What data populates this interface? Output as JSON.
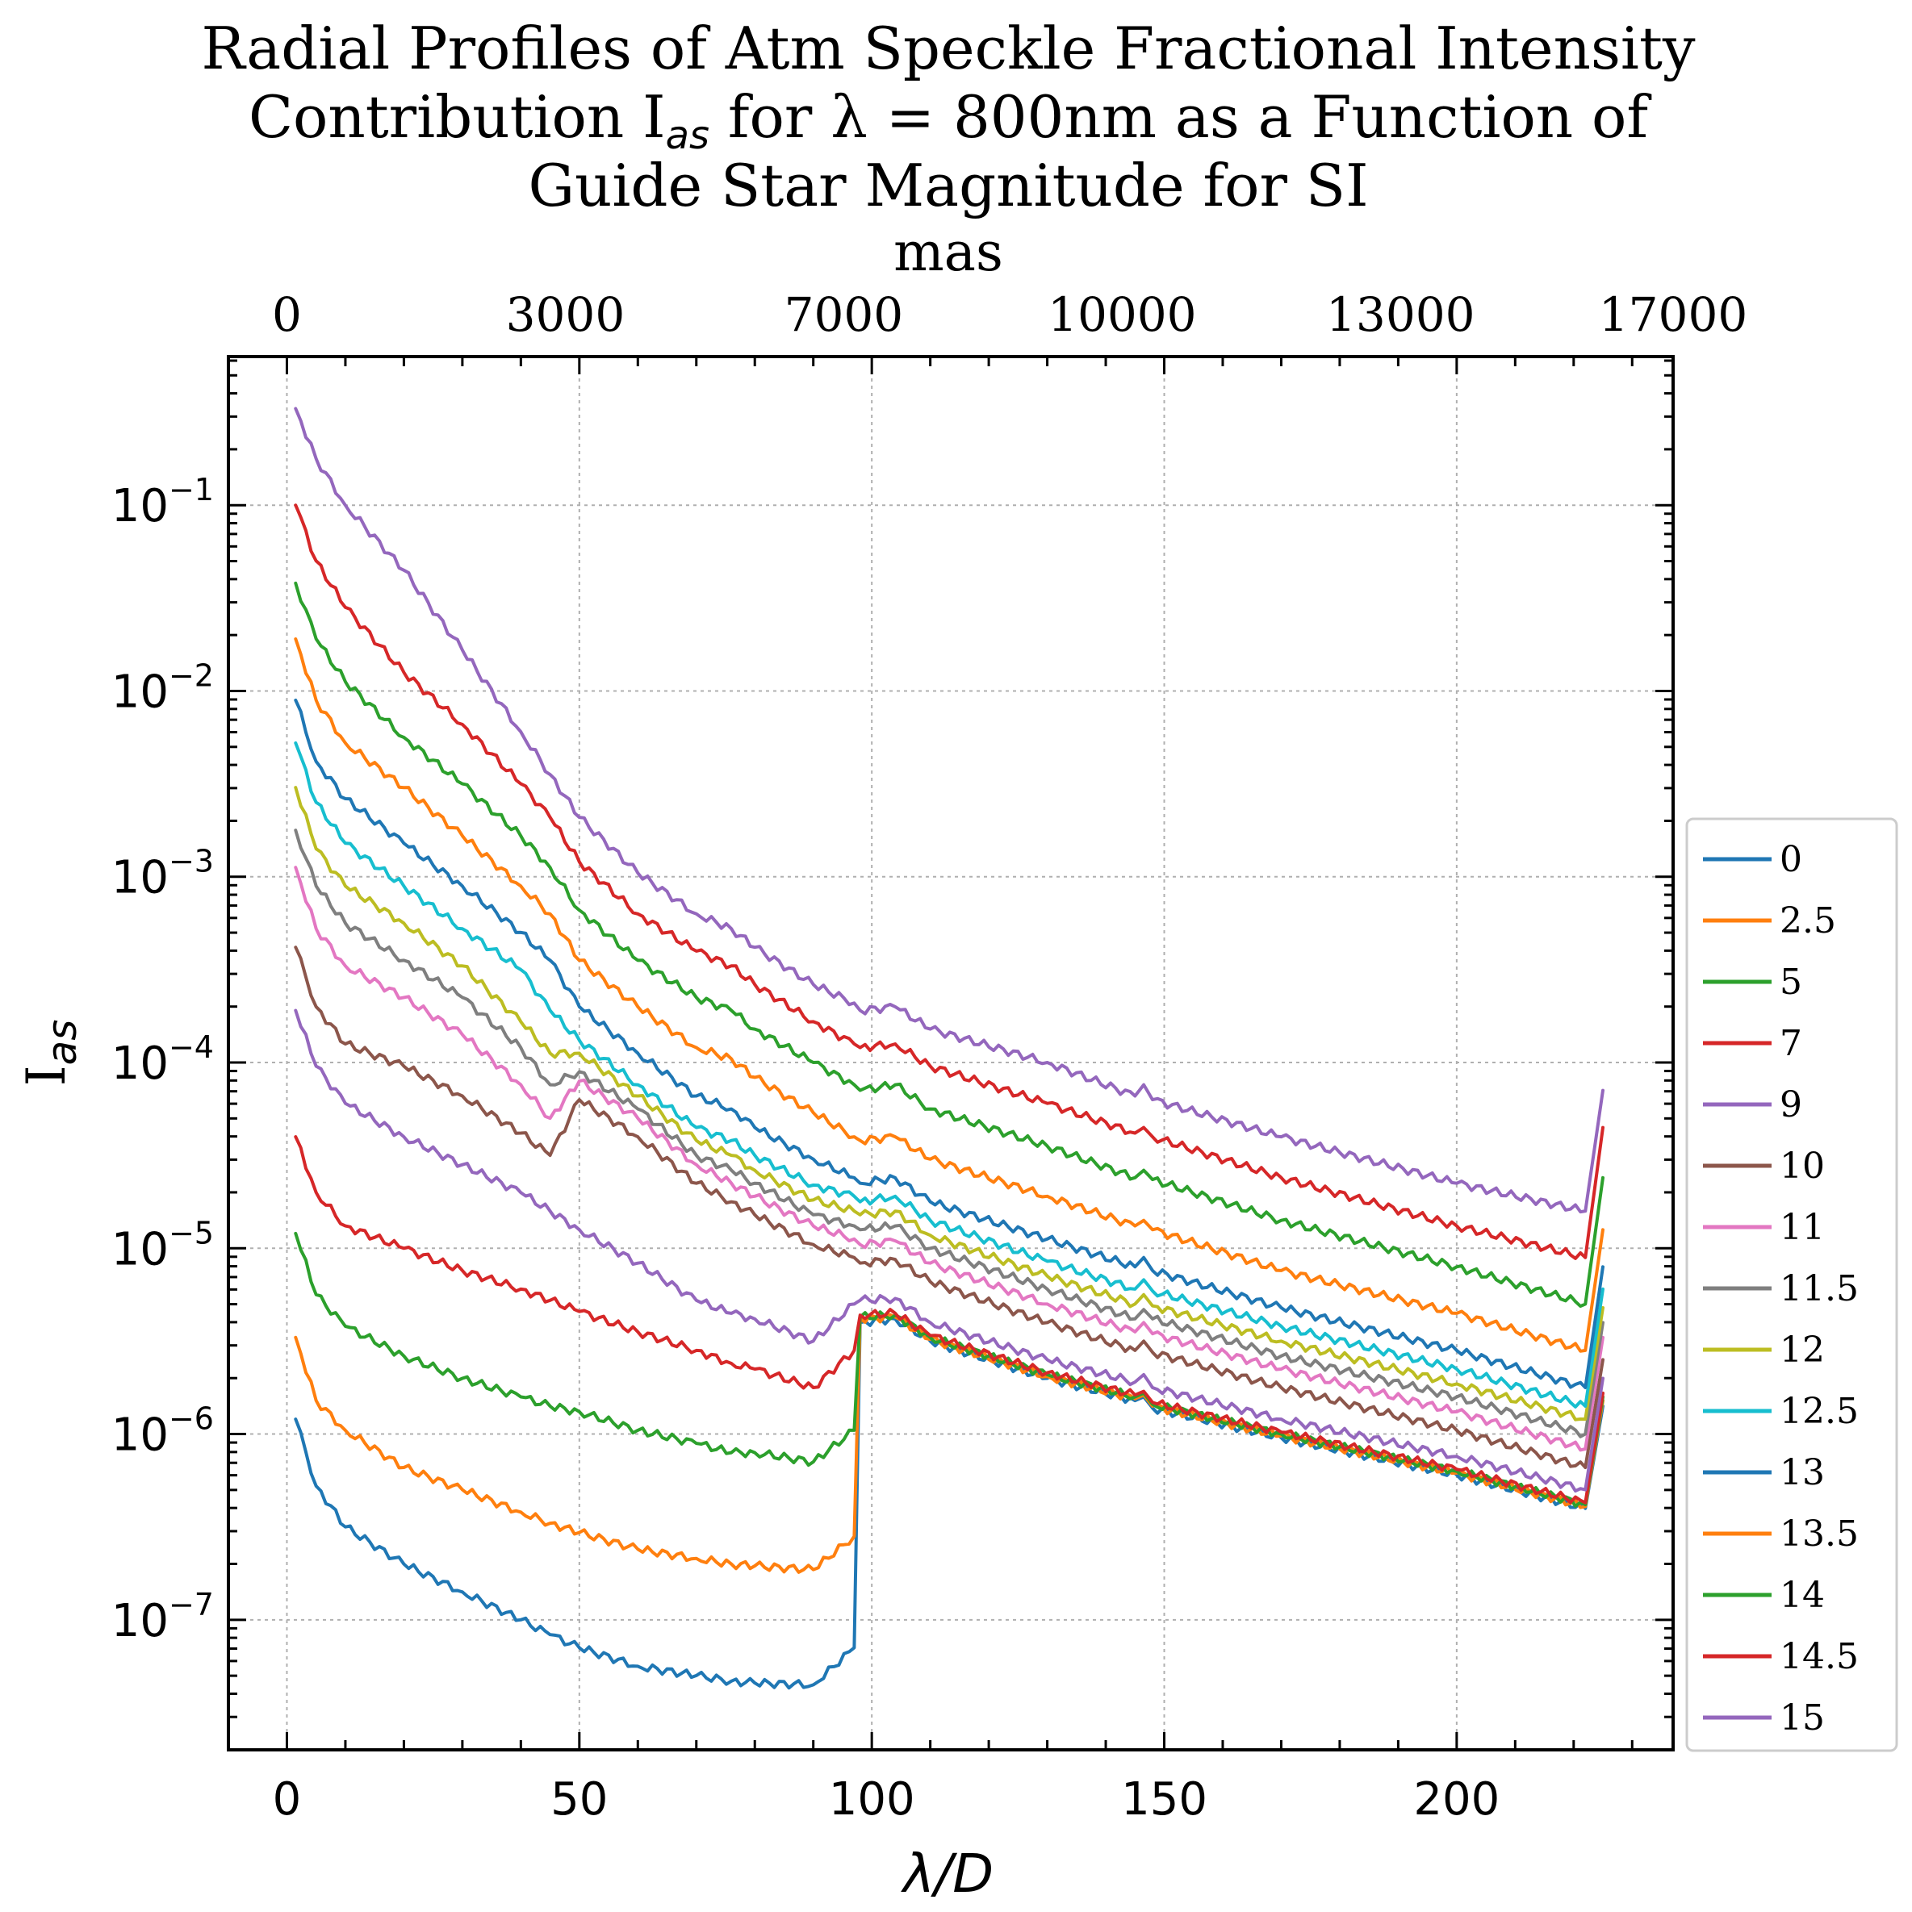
{
  "chart_data": {
    "type": "line",
    "title_lines": [
      "Radial Profiles of Atm Speckle Fractional Intensity",
      "Contribution I",
      "as",
      " for λ = 800nm as a Function of",
      "Guide Star Magnitude for SI"
    ],
    "xlabel": "λ/D",
    "ylabel_main": "I",
    "ylabel_sub": "as",
    "top_xlabel": "mas",
    "xlim": [
      -10,
      237
    ],
    "ylim_log10": [
      -7.7,
      -0.2
    ],
    "yscale": "log",
    "grid": true,
    "legend_position": "right-outside",
    "x_ticks": [
      0,
      50,
      100,
      150,
      200
    ],
    "x_tick_labels": [
      "0",
      "50",
      "100",
      "150",
      "200"
    ],
    "y_ticks_exp": [
      -1,
      -2,
      -3,
      -4,
      -5,
      -6,
      -7
    ],
    "y_tick_labels": [
      "10",
      "10",
      "10",
      "10",
      "10",
      "10",
      "10"
    ],
    "y_tick_exponents": [
      "−1",
      "−2",
      "−3",
      "−4",
      "−5",
      "−6",
      "−7"
    ],
    "top_ticks_x": [
      0,
      47.6,
      95.2,
      142.8,
      190.4,
      237
    ],
    "top_tick_labels": [
      "0",
      "3000",
      "7000",
      "10000",
      "13000",
      "17000"
    ],
    "series_shape": {
      "x": [
        1.5,
        5,
        10,
        20,
        30,
        40,
        45,
        50,
        60,
        70,
        76,
        80,
        90,
        97,
        98,
        104,
        110,
        130,
        145,
        146.5,
        148,
        170,
        200,
        222,
        225
      ],
      "description_keys": "log10 intensity per magnitude, at the x positions above"
    },
    "series": [
      {
        "name": "0",
        "color": "#1f77b4",
        "log10_y": [
          -5.92,
          -6.28,
          -6.5,
          -6.7,
          -6.85,
          -7.0,
          -7.08,
          -7.15,
          -7.25,
          -7.3,
          -7.33,
          -7.34,
          -7.35,
          -7.15,
          -5.4,
          -5.38,
          -5.5,
          -5.7,
          -5.82,
          -5.8,
          -5.86,
          -6.02,
          -6.22,
          -6.4,
          -5.85
        ]
      },
      {
        "name": "2.5",
        "color": "#ff7f0e",
        "log10_y": [
          -5.48,
          -5.82,
          -5.98,
          -6.18,
          -6.3,
          -6.42,
          -6.48,
          -6.53,
          -6.62,
          -6.67,
          -6.7,
          -6.71,
          -6.73,
          -6.55,
          -5.38,
          -5.37,
          -5.49,
          -5.69,
          -5.81,
          -5.79,
          -5.85,
          -6.01,
          -6.21,
          -6.39,
          -5.82
        ]
      },
      {
        "name": "5",
        "color": "#2ca02c",
        "log10_y": [
          -4.92,
          -5.25,
          -5.42,
          -5.58,
          -5.7,
          -5.8,
          -5.85,
          -5.88,
          -5.98,
          -6.05,
          -6.1,
          -6.1,
          -6.15,
          -5.98,
          -5.37,
          -5.36,
          -5.48,
          -5.68,
          -5.8,
          -5.78,
          -5.84,
          -6.0,
          -6.2,
          -6.38,
          -5.8
        ]
      },
      {
        "name": "7",
        "color": "#d62728",
        "log10_y": [
          -4.4,
          -4.7,
          -4.88,
          -5.0,
          -5.12,
          -5.22,
          -5.28,
          -5.34,
          -5.45,
          -5.55,
          -5.62,
          -5.65,
          -5.75,
          -5.55,
          -5.36,
          -5.35,
          -5.47,
          -5.67,
          -5.79,
          -5.77,
          -5.83,
          -5.99,
          -6.19,
          -6.37,
          -5.78
        ]
      },
      {
        "name": "9",
        "color": "#9467bd",
        "log10_y": [
          -3.72,
          -4.02,
          -4.22,
          -4.4,
          -4.55,
          -4.7,
          -4.8,
          -4.9,
          -5.08,
          -5.28,
          -5.35,
          -5.38,
          -5.5,
          -5.3,
          -5.28,
          -5.27,
          -5.4,
          -5.6,
          -5.72,
          -5.68,
          -5.75,
          -5.92,
          -6.12,
          -6.3,
          -5.7
        ]
      },
      {
        "name": "10",
        "color": "#8c564b",
        "log10_y": [
          -3.38,
          -3.7,
          -3.9,
          -4.02,
          -4.18,
          -4.38,
          -4.5,
          -4.2,
          -4.4,
          -4.65,
          -4.75,
          -4.82,
          -4.98,
          -5.05,
          -5.08,
          -5.06,
          -5.18,
          -5.4,
          -5.55,
          -5.5,
          -5.56,
          -5.75,
          -5.98,
          -6.18,
          -5.6
        ]
      },
      {
        "name": "11",
        "color": "#e377c2",
        "log10_y": [
          -2.95,
          -3.28,
          -3.48,
          -3.65,
          -3.85,
          -4.12,
          -4.3,
          -4.1,
          -4.3,
          -4.55,
          -4.65,
          -4.72,
          -4.88,
          -4.95,
          -4.98,
          -4.96,
          -5.08,
          -5.3,
          -5.45,
          -5.4,
          -5.46,
          -5.65,
          -5.88,
          -6.08,
          -5.48
        ]
      },
      {
        "name": "11.5",
        "color": "#7f7f7f",
        "log10_y": [
          -2.75,
          -3.05,
          -3.25,
          -3.45,
          -3.65,
          -3.92,
          -4.12,
          -4.05,
          -4.25,
          -4.5,
          -4.58,
          -4.65,
          -4.82,
          -4.88,
          -4.9,
          -4.88,
          -5.0,
          -5.22,
          -5.38,
          -5.33,
          -5.38,
          -5.58,
          -5.8,
          -6.0,
          -5.4
        ]
      },
      {
        "name": "12",
        "color": "#bcbd22",
        "log10_y": [
          -2.52,
          -2.85,
          -3.05,
          -3.25,
          -3.48,
          -3.78,
          -3.95,
          -3.95,
          -4.18,
          -4.42,
          -4.5,
          -4.58,
          -4.74,
          -4.8,
          -4.82,
          -4.8,
          -4.93,
          -5.15,
          -5.3,
          -5.25,
          -5.31,
          -5.5,
          -5.73,
          -5.92,
          -5.32
        ]
      },
      {
        "name": "12.5",
        "color": "#17becf",
        "log10_y": [
          -2.28,
          -2.6,
          -2.82,
          -3.05,
          -3.28,
          -3.5,
          -3.72,
          -3.88,
          -4.12,
          -4.35,
          -4.42,
          -4.5,
          -4.66,
          -4.72,
          -4.75,
          -4.72,
          -4.85,
          -5.07,
          -5.22,
          -5.17,
          -5.23,
          -5.42,
          -5.65,
          -5.85,
          -5.22
        ]
      },
      {
        "name": "13",
        "color": "#1f77b4",
        "log10_y": [
          -2.05,
          -2.38,
          -2.58,
          -2.82,
          -3.05,
          -3.3,
          -3.45,
          -3.7,
          -3.95,
          -4.18,
          -4.25,
          -4.35,
          -4.52,
          -4.62,
          -4.65,
          -4.62,
          -4.75,
          -4.95,
          -5.1,
          -5.05,
          -5.12,
          -5.32,
          -5.55,
          -5.75,
          -5.1
        ]
      },
      {
        "name": "13.5",
        "color": "#ff7f0e",
        "log10_y": [
          -1.72,
          -2.05,
          -2.28,
          -2.52,
          -2.78,
          -3.05,
          -3.2,
          -3.45,
          -3.7,
          -3.92,
          -3.98,
          -4.08,
          -4.27,
          -4.4,
          -4.42,
          -4.4,
          -4.52,
          -4.72,
          -4.88,
          -4.85,
          -4.9,
          -5.12,
          -5.35,
          -5.55,
          -4.9
        ]
      },
      {
        "name": "14",
        "color": "#2ca02c",
        "log10_y": [
          -1.42,
          -1.72,
          -1.95,
          -2.25,
          -2.5,
          -2.78,
          -2.95,
          -3.18,
          -3.45,
          -3.65,
          -3.72,
          -3.82,
          -4.0,
          -4.12,
          -4.15,
          -4.12,
          -4.25,
          -4.45,
          -4.62,
          -4.58,
          -4.63,
          -4.85,
          -5.1,
          -5.3,
          -4.62
        ]
      },
      {
        "name": "14.5",
        "color": "#d62728",
        "log10_y": [
          -1.0,
          -1.3,
          -1.55,
          -1.9,
          -2.18,
          -2.5,
          -2.68,
          -2.92,
          -3.2,
          -3.4,
          -3.48,
          -3.58,
          -3.78,
          -3.9,
          -3.92,
          -3.9,
          -4.02,
          -4.22,
          -4.38,
          -4.35,
          -4.4,
          -4.62,
          -4.88,
          -5.05,
          -4.35
        ]
      },
      {
        "name": "15",
        "color": "#9467bd",
        "log10_y": [
          -0.48,
          -0.75,
          -1.0,
          -1.35,
          -1.78,
          -2.22,
          -2.45,
          -2.68,
          -2.98,
          -3.2,
          -3.28,
          -3.38,
          -3.58,
          -3.68,
          -3.72,
          -3.7,
          -3.82,
          -4.0,
          -4.18,
          -4.12,
          -4.2,
          -4.4,
          -4.65,
          -4.8,
          -4.15
        ]
      }
    ]
  }
}
